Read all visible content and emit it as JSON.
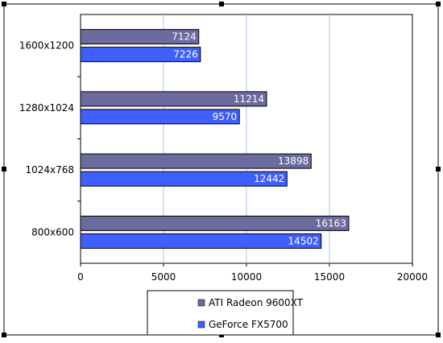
{
  "chart_data": {
    "type": "bar",
    "orientation": "horizontal",
    "title": "",
    "xlabel": "",
    "ylabel": "",
    "categories": [
      "1600x1200",
      "1280x1024",
      "1024x768",
      "800x600"
    ],
    "series": [
      {
        "name": "ATI Radeon 9600XT",
        "values": [
          7124,
          11214,
          13898,
          16163
        ],
        "color": "#6b6b9e"
      },
      {
        "name": "GeForce FX5700",
        "values": [
          7226,
          9570,
          12442,
          14502
        ],
        "color": "#3f5fff"
      }
    ],
    "xlim": [
      0,
      20000
    ],
    "xticks": [
      "0",
      "5000",
      "10000",
      "15000",
      "20000"
    ],
    "grid": "vertical",
    "legend_position": "bottom",
    "colors": {
      "grid": "#a8c8e8",
      "frame": "#000000",
      "label_text": "#ffffff"
    }
  }
}
